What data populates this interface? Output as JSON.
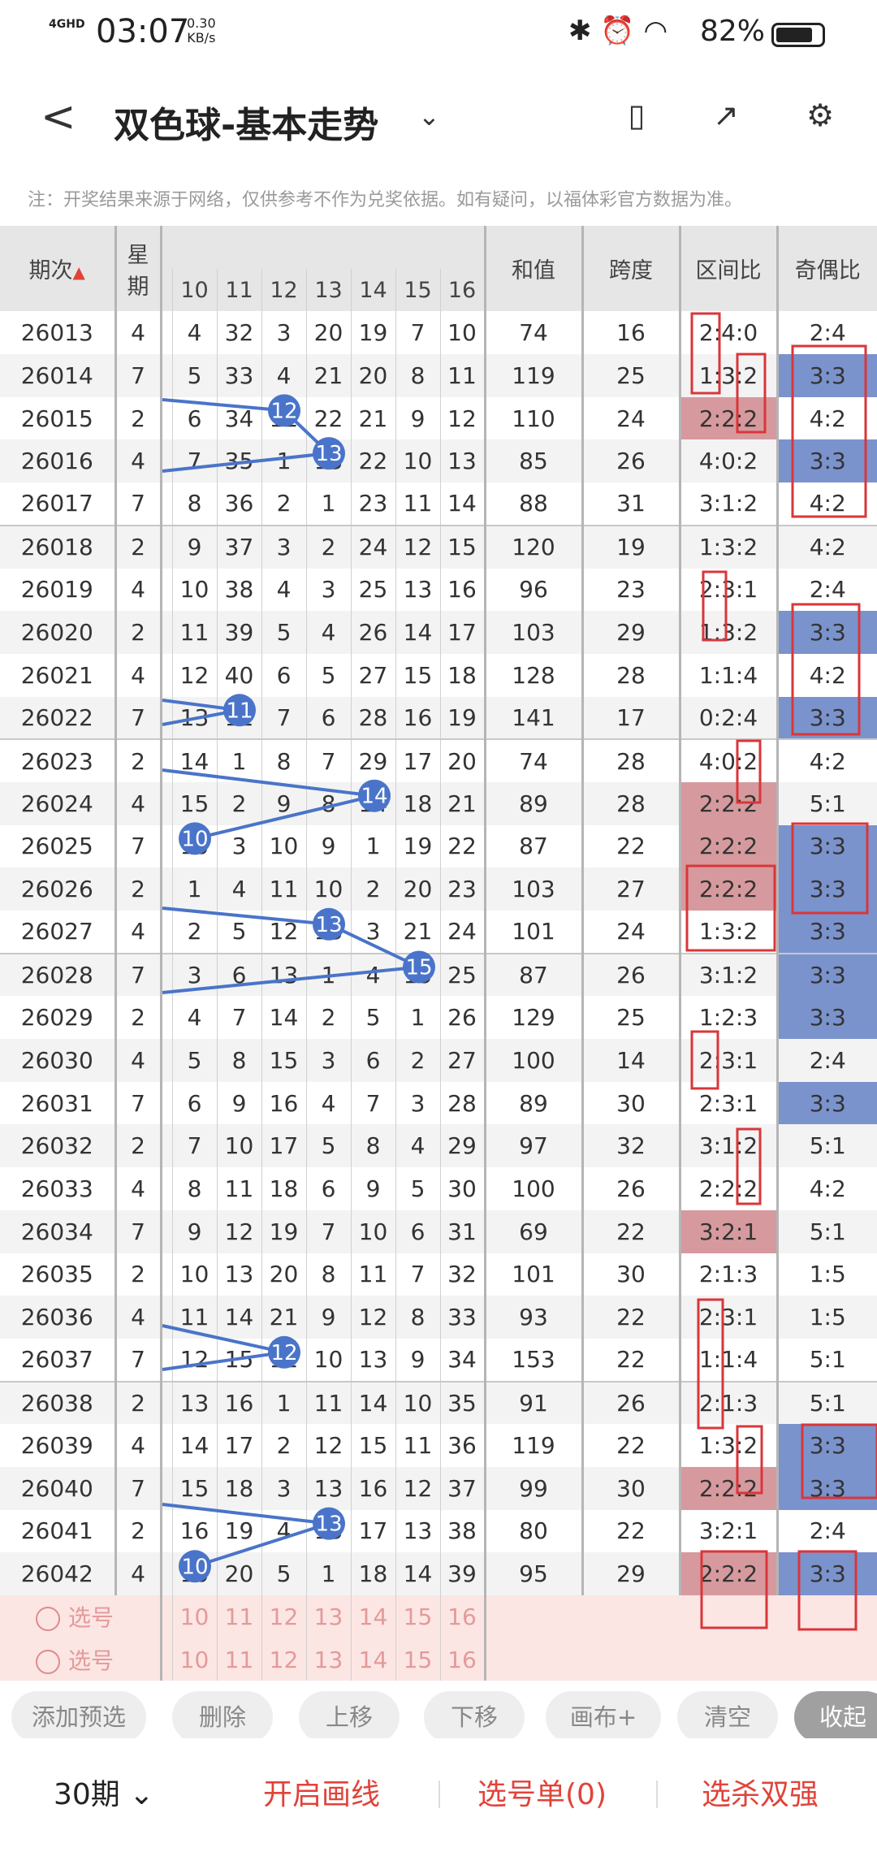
{
  "status": {
    "network": "4GHD",
    "time": "03:07",
    "speed_value": "0.30",
    "speed_unit": "KB/s",
    "battery": "82%"
  },
  "nav": {
    "title": "双色球-基本走势"
  },
  "notice": "注：开奖结果来源于网络，仅供参考不作为兑奖依据。如有疑问，以福体彩官方数据为准。",
  "table": {
    "headers": {
      "period": "期次",
      "weekday_1": "星",
      "weekday_2": "期",
      "cols": [
        "10",
        "11",
        "12",
        "13",
        "14",
        "15",
        "16"
      ],
      "sum": "和值",
      "span": "跨度",
      "zone": "区间比",
      "oddeven": "奇偶比"
    },
    "rows": [
      [
        "26013",
        "4",
        "4",
        "32",
        "3",
        "20",
        "19",
        "7",
        "10",
        "74",
        "16",
        "2:4:0",
        "2:4"
      ],
      [
        "26014",
        "7",
        "5",
        "33",
        "4",
        "21",
        "20",
        "8",
        "11",
        "119",
        "25",
        "1:3:2",
        "3:3"
      ],
      [
        "26015",
        "2",
        "6",
        "34",
        "12",
        "22",
        "21",
        "9",
        "12",
        "110",
        "24",
        "2:2:2",
        "4:2"
      ],
      [
        "26016",
        "4",
        "7",
        "35",
        "1",
        "13",
        "22",
        "10",
        "13",
        "85",
        "26",
        "4:0:2",
        "3:3"
      ],
      [
        "26017",
        "7",
        "8",
        "36",
        "2",
        "1",
        "23",
        "11",
        "14",
        "88",
        "31",
        "3:1:2",
        "4:2"
      ],
      [
        "26018",
        "2",
        "9",
        "37",
        "3",
        "2",
        "24",
        "12",
        "15",
        "120",
        "19",
        "1:3:2",
        "4:2"
      ],
      [
        "26019",
        "4",
        "10",
        "38",
        "4",
        "3",
        "25",
        "13",
        "16",
        "96",
        "23",
        "2:3:1",
        "2:4"
      ],
      [
        "26020",
        "2",
        "11",
        "39",
        "5",
        "4",
        "26",
        "14",
        "17",
        "103",
        "29",
        "1:3:2",
        "3:3"
      ],
      [
        "26021",
        "4",
        "12",
        "40",
        "6",
        "5",
        "27",
        "15",
        "18",
        "128",
        "28",
        "1:1:4",
        "4:2"
      ],
      [
        "26022",
        "7",
        "13",
        "11",
        "7",
        "6",
        "28",
        "16",
        "19",
        "141",
        "17",
        "0:2:4",
        "3:3"
      ],
      [
        "26023",
        "2",
        "14",
        "1",
        "8",
        "7",
        "29",
        "17",
        "20",
        "74",
        "28",
        "4:0:2",
        "4:2"
      ],
      [
        "26024",
        "4",
        "15",
        "2",
        "9",
        "8",
        "14",
        "18",
        "21",
        "89",
        "28",
        "2:2:2",
        "5:1"
      ],
      [
        "26025",
        "7",
        "10",
        "3",
        "10",
        "9",
        "1",
        "19",
        "22",
        "87",
        "22",
        "2:2:2",
        "3:3"
      ],
      [
        "26026",
        "2",
        "1",
        "4",
        "11",
        "10",
        "2",
        "20",
        "23",
        "103",
        "27",
        "2:2:2",
        "3:3"
      ],
      [
        "26027",
        "4",
        "2",
        "5",
        "12",
        "13",
        "3",
        "21",
        "24",
        "101",
        "24",
        "1:3:2",
        "3:3"
      ],
      [
        "26028",
        "7",
        "3",
        "6",
        "13",
        "1",
        "4",
        "15",
        "25",
        "87",
        "26",
        "3:1:2",
        "3:3"
      ],
      [
        "26029",
        "2",
        "4",
        "7",
        "14",
        "2",
        "5",
        "1",
        "26",
        "129",
        "25",
        "1:2:3",
        "3:3"
      ],
      [
        "26030",
        "4",
        "5",
        "8",
        "15",
        "3",
        "6",
        "2",
        "27",
        "100",
        "14",
        "2:3:1",
        "2:4"
      ],
      [
        "26031",
        "7",
        "6",
        "9",
        "16",
        "4",
        "7",
        "3",
        "28",
        "89",
        "30",
        "2:3:1",
        "3:3"
      ],
      [
        "26032",
        "2",
        "7",
        "10",
        "17",
        "5",
        "8",
        "4",
        "29",
        "97",
        "32",
        "3:1:2",
        "5:1"
      ],
      [
        "26033",
        "4",
        "8",
        "11",
        "18",
        "6",
        "9",
        "5",
        "30",
        "100",
        "26",
        "2:2:2",
        "4:2"
      ],
      [
        "26034",
        "7",
        "9",
        "12",
        "19",
        "7",
        "10",
        "6",
        "31",
        "69",
        "22",
        "3:2:1",
        "5:1"
      ],
      [
        "26035",
        "2",
        "10",
        "13",
        "20",
        "8",
        "11",
        "7",
        "32",
        "101",
        "30",
        "2:1:3",
        "1:5"
      ],
      [
        "26036",
        "4",
        "11",
        "14",
        "21",
        "9",
        "12",
        "8",
        "33",
        "93",
        "22",
        "2:3:1",
        "1:5"
      ],
      [
        "26037",
        "7",
        "12",
        "15",
        "12",
        "10",
        "13",
        "9",
        "34",
        "153",
        "22",
        "1:1:4",
        "5:1"
      ],
      [
        "26038",
        "2",
        "13",
        "16",
        "1",
        "11",
        "14",
        "10",
        "35",
        "91",
        "26",
        "2:1:3",
        "5:1"
      ],
      [
        "26039",
        "4",
        "14",
        "17",
        "2",
        "12",
        "15",
        "11",
        "36",
        "119",
        "22",
        "1:3:2",
        "3:3"
      ],
      [
        "26040",
        "7",
        "15",
        "18",
        "3",
        "13",
        "16",
        "12",
        "37",
        "99",
        "30",
        "2:2:2",
        "3:3"
      ],
      [
        "26041",
        "2",
        "16",
        "19",
        "4",
        "13",
        "17",
        "13",
        "38",
        "80",
        "22",
        "3:2:1",
        "2:4"
      ],
      [
        "26042",
        "4",
        "10",
        "20",
        "5",
        "1",
        "18",
        "14",
        "39",
        "95",
        "29",
        "2:2:2",
        "3:3"
      ]
    ],
    "pick_label": "选号"
  },
  "buttons": [
    "添加预选",
    "删除",
    "上移",
    "下移",
    "画布+",
    "清空",
    "收起"
  ],
  "bottom": {
    "period": "30期",
    "draw_line": "开启画线",
    "pick_list": "选号单(0)",
    "kill": "选杀双强"
  },
  "colors": {
    "accent_red": "#e0433a",
    "ball_blue": "#4a74c9",
    "cell_pink": "#d69a9e",
    "cell_blue": "#7b93cc"
  }
}
